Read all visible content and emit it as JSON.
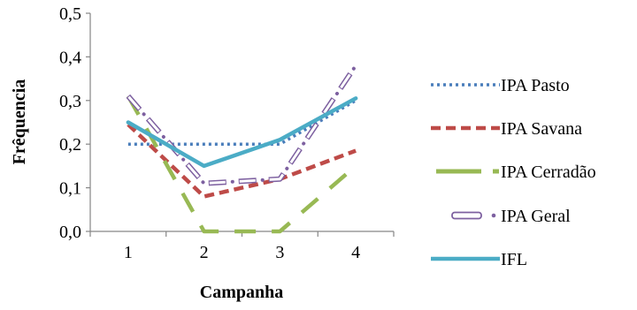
{
  "chart_data": {
    "type": "line",
    "title": "",
    "xlabel": "Campanha",
    "ylabel": "Frêquencia",
    "categories": [
      "1",
      "2",
      "3",
      "4"
    ],
    "ylim": [
      0,
      0.5
    ],
    "yticks": [
      "0,0",
      "0,1",
      "0,2",
      "0,3",
      "0,4",
      "0,5"
    ],
    "grid": false,
    "legend_position": "right",
    "series": [
      {
        "name": "IPA Pasto",
        "values": [
          0.2,
          0.2,
          0.2,
          0.3
        ],
        "color": "#4A7EBB",
        "style": "dotted"
      },
      {
        "name": "IPA Savana",
        "values": [
          0.245,
          0.08,
          0.12,
          0.185
        ],
        "color": "#BE4B48",
        "style": "dashed"
      },
      {
        "name": "IPA Cerradão",
        "values": [
          0.31,
          0.0,
          0.0,
          0.15
        ],
        "color": "#98B954",
        "style": "long-dash"
      },
      {
        "name": "IPA Geral",
        "values": [
          0.31,
          0.11,
          0.12,
          0.38
        ],
        "color": "#7D60A0",
        "style": "long-dash-dot"
      },
      {
        "name": "IFL",
        "values": [
          0.25,
          0.15,
          0.21,
          0.305
        ],
        "color": "#4BACC6",
        "style": "solid"
      }
    ]
  }
}
